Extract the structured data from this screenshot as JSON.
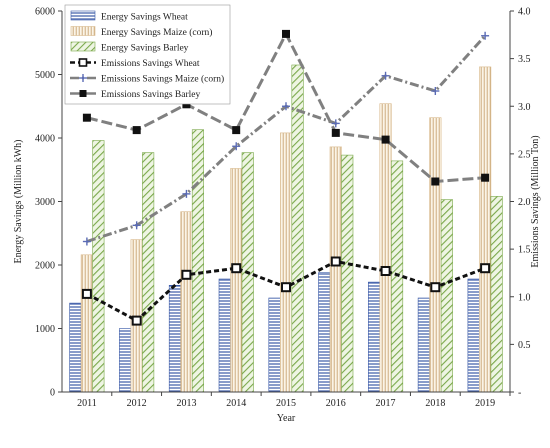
{
  "chart_data": {
    "type": "bar",
    "categories": [
      "2011",
      "2012",
      "2013",
      "2014",
      "2015",
      "2016",
      "2017",
      "2018",
      "2019"
    ],
    "xlabel": "Year",
    "ylabel": "Energy Savings (Million kWh)",
    "y2label": "Emissions Savings (Million Ton)",
    "ylim": [
      0,
      6000
    ],
    "y2lim": [
      0,
      4.0
    ],
    "yticks": [
      "0",
      "1000",
      "2000",
      "3000",
      "4000",
      "5000",
      "6000"
    ],
    "y2ticks": [
      "-",
      "0.5",
      "1.0",
      "1.5",
      "2.0",
      "2.5",
      "3.0",
      "3.5",
      "4.0"
    ],
    "grid": false,
    "legend_position": "top-left",
    "series": [
      {
        "name": "Energy Savings  Wheat",
        "kind": "bar",
        "axis": "left",
        "pattern": "hlines",
        "color": "#3b5aa8",
        "values": [
          1400,
          1000,
          1680,
          1780,
          1480,
          1880,
          1730,
          1480,
          1780
        ]
      },
      {
        "name": "Energy Savings  Maize (corn)",
        "kind": "bar",
        "axis": "left",
        "pattern": "vlines",
        "color": "#d9b98c",
        "values": [
          2160,
          2400,
          2840,
          3520,
          4080,
          3860,
          4540,
          4320,
          5120
        ]
      },
      {
        "name": "Energy Savings  Barley",
        "kind": "bar",
        "axis": "left",
        "pattern": "diag",
        "color": "#7aa84a",
        "values": [
          3960,
          3770,
          4130,
          3770,
          5150,
          3730,
          3640,
          3030,
          3080
        ]
      },
      {
        "name": "Emissions Savings  Wheat",
        "kind": "line",
        "axis": "right",
        "style": "dashed",
        "marker": "square-open",
        "color": "#111111",
        "values": [
          1.03,
          0.75,
          1.23,
          1.3,
          1.1,
          1.37,
          1.27,
          1.1,
          1.3
        ]
      },
      {
        "name": "Emissions Savings  Maize (corn)",
        "kind": "line",
        "axis": "right",
        "style": "dashdot",
        "marker": "plus",
        "color": "#808080",
        "values": [
          1.58,
          1.75,
          2.08,
          2.58,
          3.0,
          2.82,
          3.32,
          3.16,
          3.74
        ]
      },
      {
        "name": "Emissions Savings  Barley",
        "kind": "line",
        "axis": "right",
        "style": "longdash",
        "marker": "square-filled",
        "color": "#808080",
        "values": [
          2.88,
          2.75,
          3.02,
          2.75,
          3.76,
          2.72,
          2.65,
          2.21,
          2.25
        ]
      }
    ]
  }
}
